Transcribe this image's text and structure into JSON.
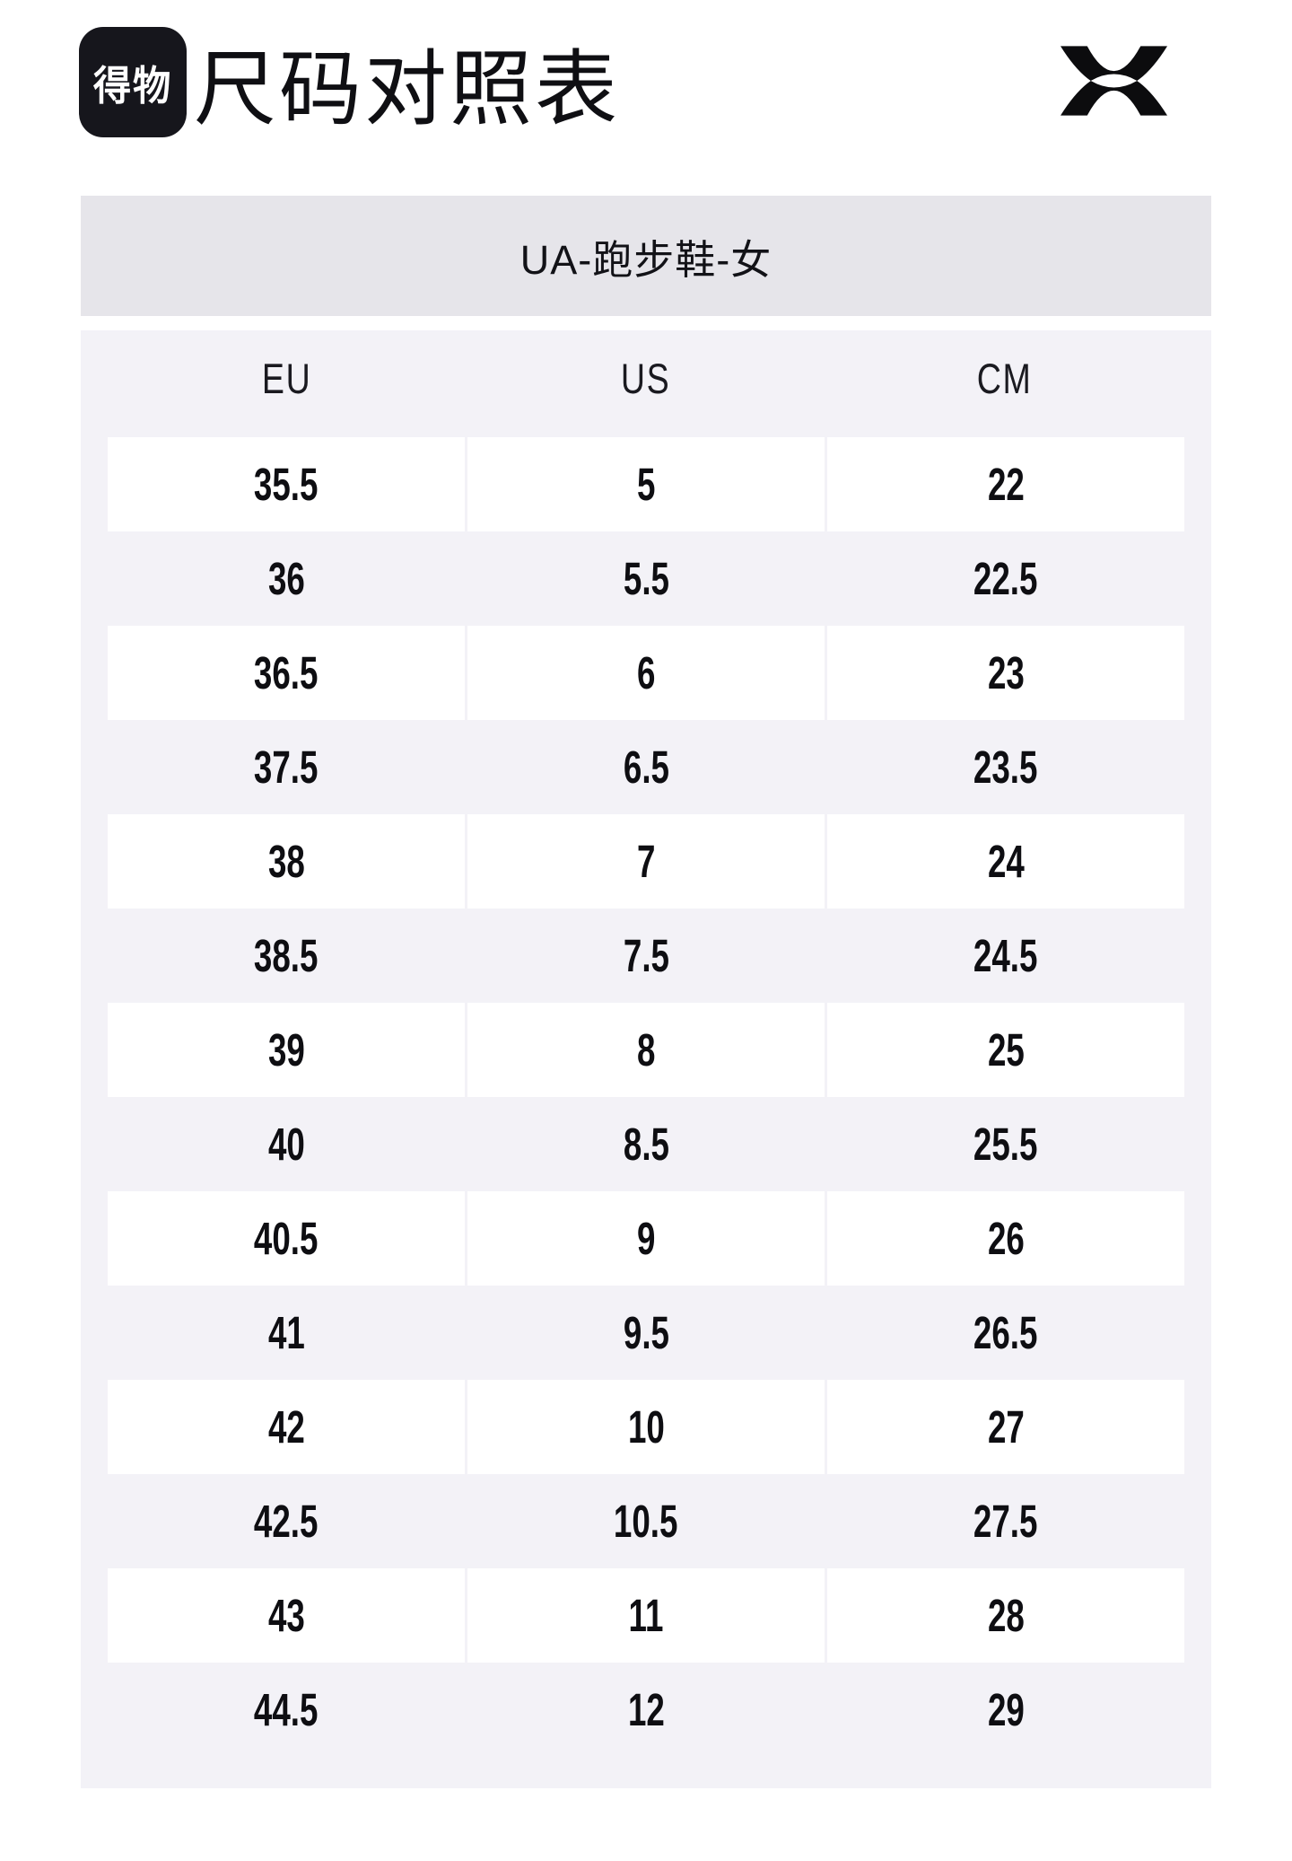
{
  "header": {
    "logo_text": "得物",
    "page_title": "尺码对照表",
    "brand_icon": "under-armour-logo"
  },
  "chart_data": {
    "type": "table",
    "title": "UA-跑步鞋-女",
    "columns": [
      "EU",
      "US",
      "CM"
    ],
    "rows": [
      [
        "35.5",
        "5",
        "22"
      ],
      [
        "36",
        "5.5",
        "22.5"
      ],
      [
        "36.5",
        "6",
        "23"
      ],
      [
        "37.5",
        "6.5",
        "23.5"
      ],
      [
        "38",
        "7",
        "24"
      ],
      [
        "38.5",
        "7.5",
        "24.5"
      ],
      [
        "39",
        "8",
        "25"
      ],
      [
        "40",
        "8.5",
        "25.5"
      ],
      [
        "40.5",
        "9",
        "26"
      ],
      [
        "41",
        "9.5",
        "26.5"
      ],
      [
        "42",
        "10",
        "27"
      ],
      [
        "42.5",
        "10.5",
        "27.5"
      ],
      [
        "43",
        "11",
        "28"
      ],
      [
        "44.5",
        "12",
        "29"
      ]
    ],
    "layout": {
      "row_striping": "white-on-gray",
      "legend": "none",
      "grid": "off"
    }
  },
  "colors": {
    "logo_bg": "#16161c",
    "bar_bg": "#e6e5ea",
    "panel_bg": "#f3f2f7",
    "cell_bg": "#ffffff",
    "text": "#0e0e12"
  }
}
